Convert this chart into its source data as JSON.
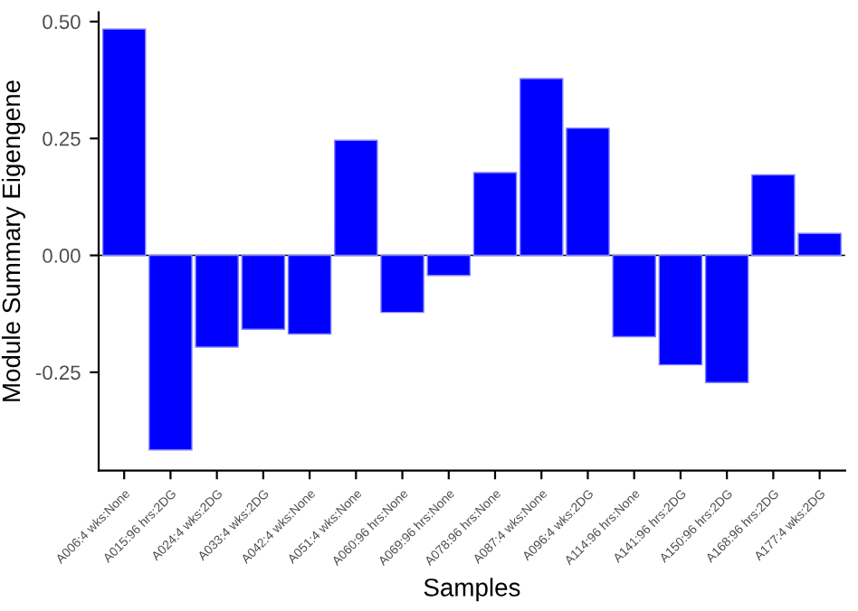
{
  "chart_data": {
    "type": "bar",
    "xlabel": "Samples",
    "ylabel": "Module Summary Eigengene",
    "categories": [
      "A006:4 wks:None",
      "A015:96 hrs:2DG",
      "A024:4 wks:2DG",
      "A033:4 wks:2DG",
      "A042:4 wks:None",
      "A051:4 wks:None",
      "A060:96 hrs:None",
      "A069:96 hrs:None",
      "A078:96 hrs:None",
      "A087:4 wks:None",
      "A096:4 wks:2DG",
      "A114:96 hrs:None",
      "A141:96 hrs:2DG",
      "A150:96 hrs:2DG",
      "A168:96 hrs:2DG",
      "A177:4 wks:2DG"
    ],
    "values": [
      0.484,
      -0.416,
      -0.196,
      -0.158,
      -0.168,
      0.246,
      -0.122,
      -0.043,
      0.177,
      0.378,
      0.272,
      -0.174,
      -0.234,
      -0.272,
      0.172,
      0.047
    ],
    "color": "#0000ff",
    "ylim": [
      -0.46,
      0.52
    ],
    "yticks": [
      {
        "value": -0.25,
        "label": "-0.25"
      },
      {
        "value": 0,
        "label": "0.00"
      },
      {
        "value": 0.25,
        "label": "0.25"
      },
      {
        "value": 0.5,
        "label": "0.50"
      }
    ],
    "ref_lines": [
      {
        "axis": "y",
        "value": 0,
        "color": "#000000"
      }
    ],
    "grid": false
  }
}
